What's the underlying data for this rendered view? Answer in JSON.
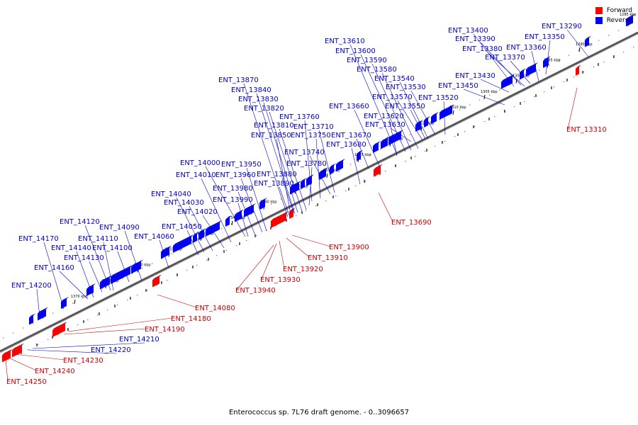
{
  "legend": [
    {
      "label": "Forward",
      "color": "#ff0000"
    },
    {
      "label": "Reverse",
      "color": "#0000ff"
    }
  ],
  "caption": "Enterococcus sp. 7L76 draft genome. - 0..3096657",
  "colors": {
    "forward": "#ff0000",
    "reverse": "#0000ff",
    "forward_line": "#cc0000",
    "reverse_line": "#0000cc",
    "axis": "#666666"
  },
  "kbp_ticks": [
    "1290 kbp",
    "1295 kbp",
    "1300 kbp",
    "1305 kbp",
    "1310 kbp",
    "1315 kbp",
    "1320 kbp",
    "1325 kbp",
    "1330 kbp",
    "1335 kbp",
    "1340 kbp",
    "1345 kbp",
    "1350 kbp",
    "1355 kbp",
    "1360 kbp",
    "1365 kbp",
    "1370 kbp"
  ],
  "corner_tick": "1285 kbp",
  "reverse_genes": [
    "ENT_13290",
    "ENT_13350",
    "ENT_13360",
    "ENT_13370",
    "ENT_13380",
    "ENT_13390",
    "ENT_13400",
    "ENT_13430",
    "ENT_13450",
    "ENT_13520",
    "ENT_13530",
    "ENT_13540",
    "ENT_13550",
    "ENT_13570",
    "ENT_13580",
    "ENT_13590",
    "ENT_13600",
    "ENT_13610",
    "ENT_13620",
    "ENT_13630",
    "ENT_13660",
    "ENT_13670",
    "ENT_13680",
    "ENT_13710",
    "ENT_13740",
    "ENT_13750",
    "ENT_13760",
    "ENT_13780",
    "ENT_13810",
    "ENT_13820",
    "ENT_13830",
    "ENT_13840",
    "ENT_13850",
    "ENT_13870",
    "ENT_13880",
    "ENT_13890",
    "ENT_13950",
    "ENT_13960",
    "ENT_13980",
    "ENT_13990",
    "ENT_14000",
    "ENT_14010",
    "ENT_14020",
    "ENT_14030",
    "ENT_14040",
    "ENT_14050",
    "ENT_14060",
    "ENT_14090",
    "ENT_14100",
    "ENT_14110",
    "ENT_14120",
    "ENT_14130",
    "ENT_14140",
    "ENT_14160",
    "ENT_14170",
    "ENT_14200",
    "ENT_14210",
    "ENT_14220"
  ],
  "forward_genes": [
    "ENT_13310",
    "ENT_13690",
    "ENT_13900",
    "ENT_13910",
    "ENT_13920",
    "ENT_13930",
    "ENT_13940",
    "ENT_14080",
    "ENT_14180",
    "ENT_14190",
    "ENT_14230",
    "ENT_14240",
    "ENT_14250"
  ]
}
